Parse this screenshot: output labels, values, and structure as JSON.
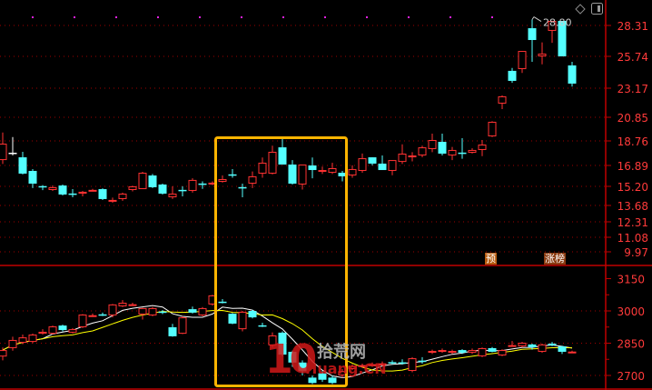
{
  "chart_data": [
    {
      "type": "candlestick",
      "panel": "price",
      "y_ticks": [
        "28.31",
        "25.74",
        "23.17",
        "20.85",
        "18.76",
        "16.89",
        "15.20",
        "13.68",
        "12.31",
        "11.08",
        "9.97"
      ],
      "ylim": [
        9.97,
        28.31
      ],
      "scale": "log",
      "grid": true,
      "high_annotation": "28.80",
      "candles_ohlc_order": "open,close,high,low",
      "candles": [
        [
          17.3,
          18.55,
          19.5,
          17.0
        ],
        [
          17.86,
          17.86,
          19.1,
          17.65
        ],
        [
          17.51,
          16.23,
          17.93,
          16.16
        ],
        [
          16.45,
          15.42,
          16.6,
          15.06
        ],
        [
          15.22,
          15.19,
          15.3,
          14.9
        ],
        [
          14.91,
          15.13,
          15.27,
          14.84
        ],
        [
          15.27,
          14.55,
          15.35,
          14.48
        ],
        [
          14.63,
          14.61,
          14.98,
          14.33
        ],
        [
          14.62,
          14.77,
          14.84,
          14.4
        ],
        [
          14.9,
          14.92,
          15.0,
          14.8
        ],
        [
          14.98,
          14.19,
          15.05,
          14.11
        ],
        [
          14.1,
          14.12,
          14.3,
          13.9
        ],
        [
          14.19,
          14.62,
          14.7,
          14.05
        ],
        [
          14.91,
          15.2,
          15.25,
          14.8
        ],
        [
          14.98,
          16.3,
          16.38,
          14.98
        ],
        [
          16.08,
          15.13,
          16.2,
          15.06
        ],
        [
          15.35,
          14.62,
          15.42,
          14.55
        ],
        [
          14.33,
          14.62,
          15.2,
          14.2
        ],
        [
          14.92,
          14.9,
          15.2,
          14.4
        ],
        [
          14.84,
          15.72,
          15.85,
          14.7
        ],
        [
          15.43,
          15.41,
          15.6,
          15.0
        ],
        [
          15.35,
          15.5,
          15.6,
          15.3
        ],
        [
          15.57,
          15.79,
          16.08,
          15.5
        ],
        [
          16.17,
          16.15,
          16.6,
          15.9
        ],
        [
          15.14,
          15.12,
          15.42,
          14.33
        ],
        [
          15.42,
          16.01,
          16.4,
          15.06
        ],
        [
          16.23,
          17.1,
          17.5,
          15.9
        ],
        [
          16.23,
          17.93,
          18.4,
          16.16
        ],
        [
          18.27,
          16.96,
          19.0,
          16.96
        ],
        [
          16.96,
          15.42,
          17.3,
          15.35
        ],
        [
          15.35,
          16.96,
          16.96,
          14.95
        ],
        [
          16.89,
          16.52,
          17.5,
          15.85
        ],
        [
          16.38,
          16.52,
          16.8,
          16.2
        ],
        [
          16.3,
          16.67,
          17.1,
          16.2
        ],
        [
          16.3,
          16.01,
          16.45,
          15.6
        ],
        [
          16.08,
          16.6,
          16.9,
          15.9
        ],
        [
          16.45,
          17.44,
          17.8,
          16.3
        ],
        [
          17.51,
          17.03,
          17.51,
          16.9
        ],
        [
          17.03,
          16.52,
          17.65,
          16.52
        ],
        [
          16.45,
          17.3,
          17.3,
          16.1
        ],
        [
          17.16,
          17.79,
          18.5,
          17.0
        ],
        [
          17.51,
          17.65,
          17.9,
          17.2
        ],
        [
          17.65,
          18.27,
          18.4,
          17.51
        ],
        [
          18.14,
          18.84,
          19.4,
          17.9
        ],
        [
          18.69,
          17.79,
          19.4,
          17.65
        ],
        [
          17.65,
          18.07,
          18.3,
          17.3
        ],
        [
          17.87,
          17.85,
          19.0,
          17.4
        ],
        [
          17.86,
          18.07,
          18.2,
          17.8
        ],
        [
          18.07,
          18.48,
          18.84,
          17.6
        ],
        [
          19.16,
          20.45,
          20.5,
          19.1
        ],
        [
          21.94,
          22.52,
          22.6,
          21.5
        ],
        [
          24.57,
          23.76,
          24.8,
          23.6
        ],
        [
          24.71,
          26.19,
          26.19,
          24.4
        ],
        [
          28.08,
          27.1,
          28.8,
          25.3
        ],
        [
          25.74,
          25.97,
          26.9,
          25.1
        ],
        [
          27.86,
          28.69,
          28.69,
          26.86
        ],
        [
          28.69,
          25.74,
          28.69,
          25.74
        ],
        [
          25.01,
          23.54,
          25.3,
          23.3
        ]
      ],
      "markers": {
        "forecast": "预",
        "limit_up_list": "涨榜"
      },
      "highlight_box": {
        "from_index": 21,
        "to_index": 34,
        "color": "#ffb400"
      }
    },
    {
      "type": "candlestick",
      "panel": "index",
      "y_ticks": [
        "3150",
        "3000",
        "2850",
        "2700"
      ],
      "ylim": [
        2700,
        3150
      ],
      "grid": true,
      "moving_averages": [
        {
          "period": 5,
          "color": "#ffffff"
        },
        {
          "period": 10,
          "color": "#ffff00"
        }
      ],
      "candles": [
        [
          2788,
          2818,
          2830,
          2770
        ],
        [
          2827,
          2865,
          2880,
          2815
        ],
        [
          2852,
          2877,
          2890,
          2845
        ],
        [
          2856,
          2890,
          2895,
          2850
        ],
        [
          2894,
          2903,
          2915,
          2890
        ],
        [
          2894,
          2928,
          2932,
          2890
        ],
        [
          2932,
          2911,
          2936,
          2905
        ],
        [
          2899,
          2915,
          2920,
          2895
        ],
        [
          2924,
          2983,
          2985,
          2920
        ],
        [
          2978,
          2980,
          2988,
          2972
        ],
        [
          2984,
          2982,
          2992,
          2976
        ],
        [
          2979,
          3030,
          3032,
          2970
        ],
        [
          3021,
          3038,
          3050,
          3018
        ],
        [
          3029,
          3031,
          3038,
          3024
        ],
        [
          2983,
          3013,
          3015,
          2960
        ],
        [
          2979,
          3013,
          3018,
          2975
        ],
        [
          2997,
          2995,
          3004,
          2985
        ],
        [
          2924,
          2882,
          2940,
          2880
        ],
        [
          2894,
          2970,
          2975,
          2892
        ],
        [
          3008,
          2992,
          3020,
          2988
        ],
        [
          2979,
          3013,
          3018,
          2975
        ],
        [
          3030,
          3072,
          3075,
          3025
        ],
        [
          3043,
          3041,
          3055,
          3035
        ],
        [
          2987,
          2941,
          2990,
          2938
        ],
        [
          2915,
          2996,
          3000,
          2905
        ],
        [
          3000,
          2970,
          3005,
          2965
        ],
        [
          2933,
          2931,
          2945,
          2925
        ],
        [
          2840,
          2886,
          2900,
          2830
        ],
        [
          2899,
          2797,
          2905,
          2790
        ],
        [
          2810,
          2760,
          2815,
          2740
        ],
        [
          2760,
          2720,
          2770,
          2700
        ],
        [
          2690,
          2665,
          2700,
          2660
        ],
        [
          2710,
          2680,
          2720,
          2670
        ],
        [
          2690,
          2665,
          2700,
          2660
        ],
        [
          2700,
          2720,
          2730,
          2690
        ],
        [
          2730,
          2745,
          2752,
          2725
        ],
        [
          2740,
          2748,
          2755,
          2735
        ],
        [
          2745,
          2752,
          2760,
          2740
        ],
        [
          2750,
          2756,
          2765,
          2745
        ],
        [
          2762,
          2758,
          2770,
          2750
        ],
        [
          2761,
          2759,
          2775,
          2750
        ],
        [
          2721,
          2780,
          2785,
          2715
        ],
        [
          2769,
          2767,
          2785,
          2755
        ],
        [
          2806,
          2814,
          2820,
          2800
        ],
        [
          2810,
          2818,
          2825,
          2805
        ],
        [
          2806,
          2814,
          2820,
          2800
        ],
        [
          2818,
          2806,
          2822,
          2800
        ],
        [
          2806,
          2818,
          2825,
          2800
        ],
        [
          2789,
          2827,
          2830,
          2785
        ],
        [
          2827,
          2810,
          2832,
          2808
        ],
        [
          2793,
          2818,
          2822,
          2790
        ],
        [
          2839,
          2841,
          2860,
          2835
        ],
        [
          2835,
          2852,
          2856,
          2830
        ],
        [
          2844,
          2831,
          2848,
          2820
        ],
        [
          2810,
          2844,
          2848,
          2805
        ],
        [
          2848,
          2840,
          2856,
          2836
        ],
        [
          2835,
          2810,
          2838,
          2800
        ],
        [
          2809,
          2811,
          2815,
          2805
        ]
      ]
    }
  ],
  "colors": {
    "up": "#ff3232",
    "down": "#54ffff",
    "flat": "#ffffff",
    "axis": "#c00000",
    "grid": "#a00000",
    "tick_text": "#ff3a3a",
    "highlight": "#ffb400"
  },
  "icons": {
    "top_right": [
      "diamond-icon",
      "panel-toggle-icon"
    ]
  },
  "watermark": {
    "number": "10",
    "site_cn": "拾荒网",
    "site_en": "Huang.CN"
  }
}
